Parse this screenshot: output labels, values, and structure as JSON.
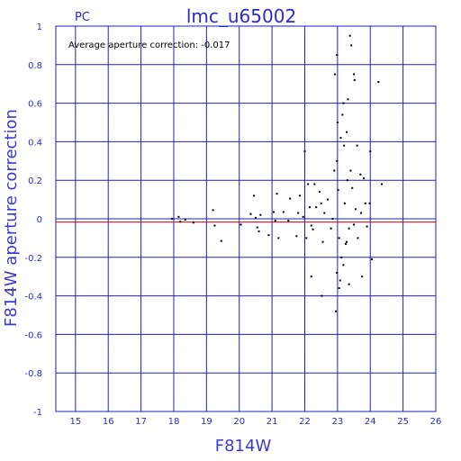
{
  "chart_data": {
    "type": "scatter",
    "title": "lmc_u65002",
    "subtitle": "PC",
    "xlabel": "F814W",
    "ylabel": "F814W aperture correction",
    "annotation": "Average aperture correction: -0.017",
    "xlim": [
      14.4,
      26
    ],
    "ylim": [
      -1,
      1
    ],
    "x_ticks": [
      "15",
      "16",
      "17",
      "18",
      "19",
      "20",
      "21",
      "22",
      "23",
      "24",
      "25",
      "26"
    ],
    "y_ticks": [
      "1",
      "0.8",
      "0.6",
      "0.4",
      "0.2",
      "0",
      "-0.2",
      "-0.4",
      "-0.6",
      "-0.8",
      "-1"
    ],
    "grid": true,
    "reference_lines": [
      {
        "y": 0,
        "color": "#2020c0"
      },
      {
        "y": -0.017,
        "color": "#e00000"
      }
    ],
    "points": [
      [
        17.95,
        0.0
      ],
      [
        18.15,
        0.01
      ],
      [
        18.2,
        -0.015
      ],
      [
        18.35,
        -0.005
      ],
      [
        18.6,
        -0.02
      ],
      [
        19.2,
        0.045
      ],
      [
        19.25,
        -0.035
      ],
      [
        19.45,
        -0.115
      ],
      [
        20.05,
        -0.03
      ],
      [
        20.35,
        0.025
      ],
      [
        20.45,
        0.12
      ],
      [
        20.5,
        0.005
      ],
      [
        20.55,
        -0.045
      ],
      [
        20.6,
        -0.065
      ],
      [
        20.65,
        0.02
      ],
      [
        20.9,
        -0.085
      ],
      [
        21.05,
        0.035
      ],
      [
        21.1,
        -0.01
      ],
      [
        21.15,
        0.13
      ],
      [
        21.2,
        -0.1
      ],
      [
        21.35,
        0.035
      ],
      [
        21.5,
        -0.01
      ],
      [
        21.55,
        0.105
      ],
      [
        21.75,
        -0.09
      ],
      [
        21.8,
        0.03
      ],
      [
        21.85,
        0.12
      ],
      [
        21.95,
        0.01
      ],
      [
        22.0,
        0.35
      ],
      [
        22.05,
        -0.1
      ],
      [
        22.1,
        0.18
      ],
      [
        22.15,
        0.06
      ],
      [
        22.2,
        -0.035
      ],
      [
        22.25,
        -0.055
      ],
      [
        22.3,
        0.18
      ],
      [
        22.35,
        0.06
      ],
      [
        22.45,
        0.14
      ],
      [
        22.5,
        0.08
      ],
      [
        22.55,
        -0.12
      ],
      [
        22.6,
        0.03
      ],
      [
        22.7,
        0.1
      ],
      [
        22.8,
        -0.05
      ],
      [
        22.85,
        0.0
      ],
      [
        22.9,
        0.25
      ],
      [
        22.92,
        0.75
      ],
      [
        22.98,
        0.3
      ],
      [
        23.0,
        0.5
      ],
      [
        23.02,
        0.15
      ],
      [
        23.05,
        -0.1
      ],
      [
        23.08,
        -0.32
      ],
      [
        23.1,
        0.42
      ],
      [
        23.12,
        -0.2
      ],
      [
        23.15,
        0.54
      ],
      [
        23.18,
        0.6
      ],
      [
        23.2,
        0.38
      ],
      [
        23.22,
        0.08
      ],
      [
        23.25,
        -0.13
      ],
      [
        23.28,
        0.45
      ],
      [
        23.3,
        0.2
      ],
      [
        23.32,
        0.62
      ],
      [
        23.35,
        -0.05
      ],
      [
        23.38,
        0.95
      ],
      [
        23.4,
        0.25
      ],
      [
        23.42,
        0.9
      ],
      [
        23.45,
        0.16
      ],
      [
        23.5,
        0.75
      ],
      [
        23.52,
        0.72
      ],
      [
        23.55,
        0.05
      ],
      [
        23.6,
        0.38
      ],
      [
        23.62,
        -0.1
      ],
      [
        23.7,
        0.23
      ],
      [
        23.75,
        -0.3
      ],
      [
        23.8,
        0.21
      ],
      [
        23.85,
        0.08
      ],
      [
        23.9,
        -0.04
      ],
      [
        24.0,
        0.35
      ],
      [
        24.05,
        -0.21
      ],
      [
        24.25,
        0.71
      ],
      [
        24.35,
        0.18
      ],
      [
        22.98,
        0.85
      ],
      [
        22.95,
        -0.48
      ],
      [
        23.05,
        -0.36
      ],
      [
        22.98,
        -0.28
      ],
      [
        23.18,
        -0.24
      ],
      [
        23.28,
        -0.12
      ],
      [
        22.52,
        -0.4
      ],
      [
        22.2,
        -0.3
      ],
      [
        23.5,
        -0.03
      ],
      [
        23.35,
        -0.34
      ],
      [
        23.72,
        0.03
      ],
      [
        23.98,
        0.08
      ]
    ]
  }
}
